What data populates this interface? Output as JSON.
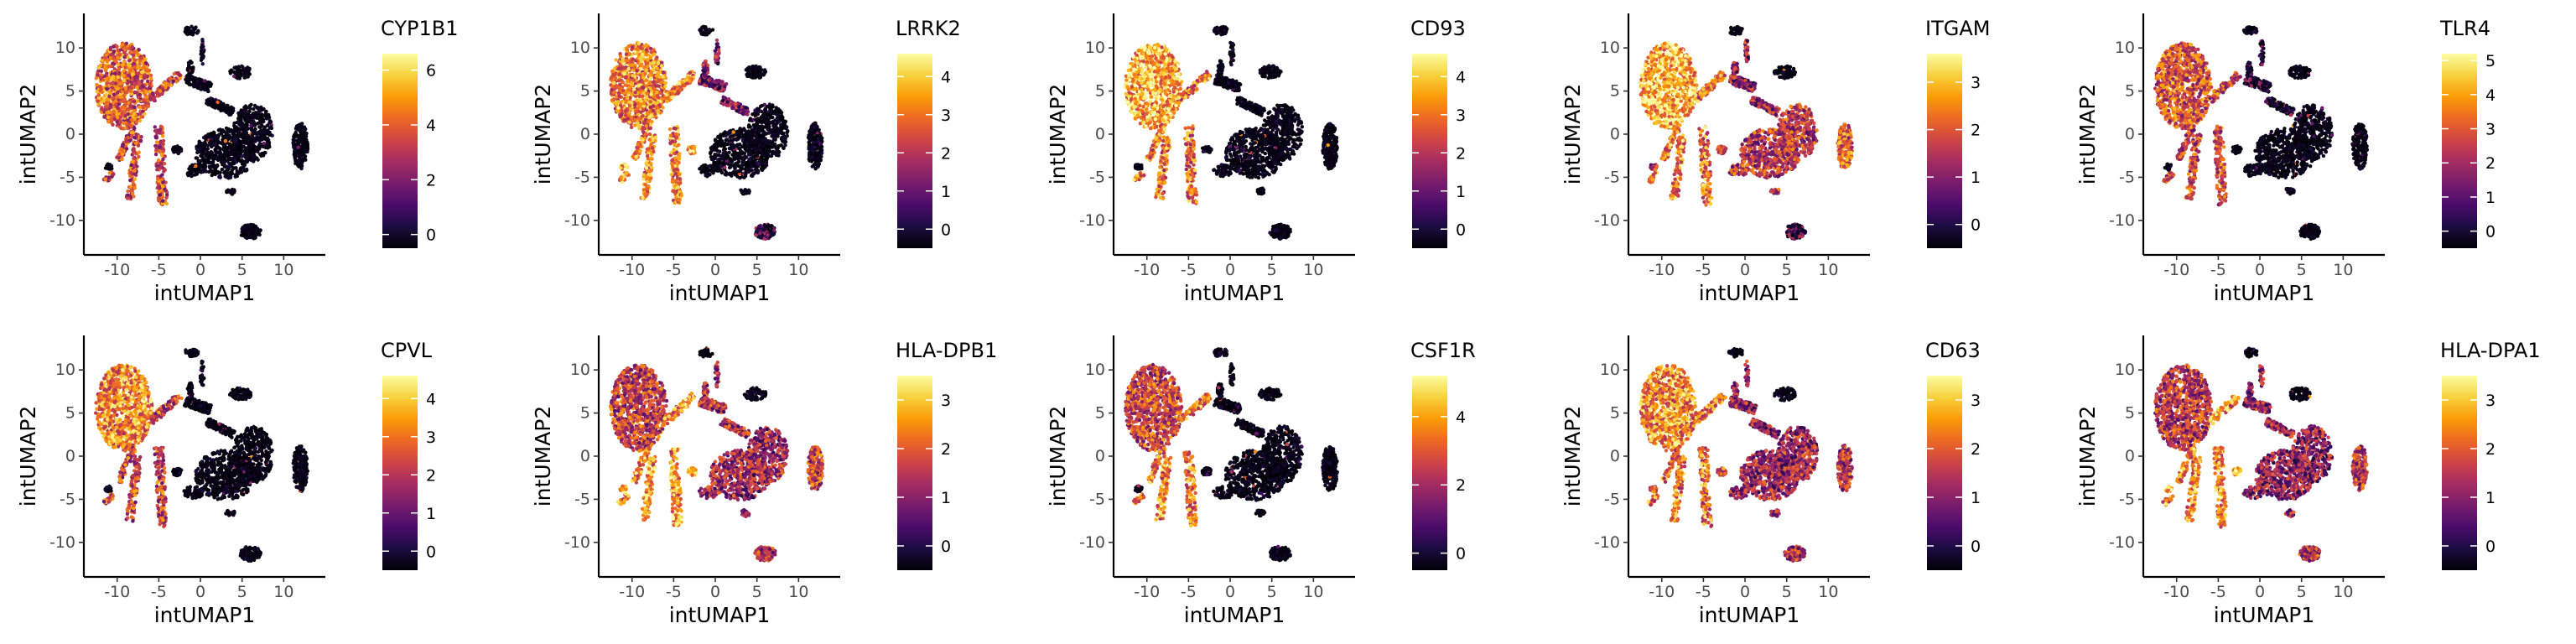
{
  "figure": {
    "xlabel": "intUMAP1",
    "ylabel": "intUMAP2",
    "xticks": [
      -10,
      -5,
      0,
      5,
      10
    ],
    "yticks": [
      -10,
      -5,
      0,
      5,
      10
    ],
    "xlim": [
      -14,
      15
    ],
    "ylim": [
      -14,
      14
    ],
    "colormap": "inferno",
    "colormap_stops": [
      "#000004",
      "#1b0c41",
      "#4a0c6b",
      "#781c6d",
      "#a52c60",
      "#cf4446",
      "#ed6925",
      "#fb9b06",
      "#f7d13d",
      "#fcffa4"
    ],
    "background": "#ffffff",
    "point_color_low": "#000004"
  },
  "chart_data": [
    {
      "type": "scatter",
      "title": "CYP1B1",
      "legend_ticks": [
        0,
        2,
        4,
        6
      ],
      "legend_range": [
        -0.5,
        6.6
      ],
      "cluster_expression": {
        "mono": 0.62,
        "arms": 0.55,
        "dc": 0.12,
        "big": 0.05,
        "right": 0.04,
        "bottom": 0.03,
        "mid": 0.18,
        "top": 0.05
      }
    },
    {
      "type": "scatter",
      "title": "LRRK2",
      "legend_ticks": [
        0,
        1,
        2,
        3,
        4
      ],
      "legend_range": [
        -0.5,
        4.6
      ],
      "cluster_expression": {
        "mono": 0.7,
        "arms": 0.72,
        "dc": 0.78,
        "big": 0.08,
        "right": 0.05,
        "bottom": 0.3,
        "mid": 0.35,
        "top": 0.08
      }
    },
    {
      "type": "scatter",
      "title": "CD93",
      "legend_ticks": [
        0,
        1,
        2,
        3,
        4
      ],
      "legend_range": [
        -0.5,
        4.6
      ],
      "cluster_expression": {
        "mono": 0.8,
        "arms": 0.68,
        "dc": 0.1,
        "big": 0.08,
        "right": 0.06,
        "bottom": 0.04,
        "mid": 0.15,
        "top": 0.05
      }
    },
    {
      "type": "scatter",
      "title": "ITGAM",
      "legend_ticks": [
        0,
        1,
        2,
        3
      ],
      "legend_range": [
        -0.5,
        3.6
      ],
      "cluster_expression": {
        "mono": 0.82,
        "arms": 0.7,
        "dc": 0.45,
        "big": 0.5,
        "right": 0.62,
        "bottom": 0.25,
        "mid": 0.4,
        "top": 0.1
      }
    },
    {
      "type": "scatter",
      "title": "TLR4",
      "legend_ticks": [
        0,
        1,
        2,
        3,
        4,
        5
      ],
      "legend_range": [
        -0.5,
        5.2
      ],
      "cluster_expression": {
        "mono": 0.6,
        "arms": 0.55,
        "dc": 0.12,
        "big": 0.04,
        "right": 0.04,
        "bottom": 0.03,
        "mid": 0.2,
        "top": 0.04
      }
    },
    {
      "type": "scatter",
      "title": "CPVL",
      "legend_ticks": [
        0,
        1,
        2,
        3,
        4
      ],
      "legend_range": [
        -0.5,
        4.6
      ],
      "cluster_expression": {
        "mono": 0.72,
        "arms": 0.55,
        "dc": 0.15,
        "big": 0.05,
        "right": 0.04,
        "bottom": 0.03,
        "mid": 0.18,
        "top": 0.05
      }
    },
    {
      "type": "scatter",
      "title": "HLA-DPB1",
      "legend_ticks": [
        0,
        1,
        2,
        3
      ],
      "legend_range": [
        -0.5,
        3.5
      ],
      "cluster_expression": {
        "mono": 0.52,
        "arms": 0.75,
        "dc": 0.88,
        "big": 0.42,
        "right": 0.55,
        "bottom": 0.5,
        "mid": 0.45,
        "top": 0.1
      }
    },
    {
      "type": "scatter",
      "title": "CSF1R",
      "legend_ticks": [
        0,
        2,
        4
      ],
      "legend_range": [
        -0.5,
        5.2
      ],
      "cluster_expression": {
        "mono": 0.55,
        "arms": 0.7,
        "dc": 0.12,
        "big": 0.04,
        "right": 0.04,
        "bottom": 0.03,
        "mid": 0.18,
        "top": 0.04
      }
    },
    {
      "type": "scatter",
      "title": "CD63",
      "legend_ticks": [
        0,
        1,
        2,
        3
      ],
      "legend_range": [
        -0.5,
        3.5
      ],
      "cluster_expression": {
        "mono": 0.74,
        "arms": 0.68,
        "dc": 0.6,
        "big": 0.42,
        "right": 0.48,
        "bottom": 0.45,
        "mid": 0.4,
        "top": 0.1
      }
    },
    {
      "type": "scatter",
      "title": "HLA-DPA1",
      "legend_ticks": [
        0,
        1,
        2,
        3
      ],
      "legend_range": [
        -0.5,
        3.5
      ],
      "cluster_expression": {
        "mono": 0.5,
        "arms": 0.72,
        "dc": 0.85,
        "big": 0.38,
        "right": 0.5,
        "bottom": 0.48,
        "mid": 0.4,
        "top": 0.1
      }
    }
  ]
}
